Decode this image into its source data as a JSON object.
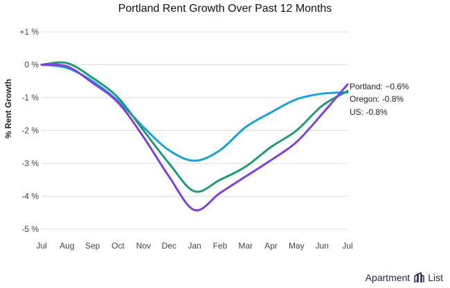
{
  "chart_data": {
    "type": "line",
    "title": "Portland Rent Growth Over Past 12 Months",
    "ylabel": "% Rent Growth",
    "xlabel": "",
    "categories": [
      "Jul",
      "Aug",
      "Sep",
      "Oct",
      "Nov",
      "Dec",
      "Jan",
      "Feb",
      "Mar",
      "Apr",
      "May",
      "Jun",
      "Jul"
    ],
    "ylim": [
      -5,
      1
    ],
    "yticks": [
      1,
      0,
      -1,
      -2,
      -3,
      -4,
      -5
    ],
    "ytick_labels": [
      "+1 %",
      "0 %",
      "-1 %",
      "-2 %",
      "-3 %",
      "-4 %",
      "-5 %"
    ],
    "grid": true,
    "series": [
      {
        "name": "US",
        "color": "#1a9fd8",
        "label": "US: -0.8%",
        "values": [
          0,
          -0.1,
          -0.5,
          -1.1,
          -1.9,
          -2.6,
          -2.92,
          -2.6,
          -1.9,
          -1.45,
          -1.05,
          -0.88,
          -0.84
        ]
      },
      {
        "name": "Oregon",
        "color": "#1a9b73",
        "label": "Oregon: -0.8%",
        "values": [
          0,
          0.05,
          -0.4,
          -1.0,
          -2.0,
          -3.0,
          -3.85,
          -3.5,
          -3.1,
          -2.5,
          -2.0,
          -1.25,
          -0.8
        ]
      },
      {
        "name": "Portland",
        "color": "#7e3fdc",
        "label": "Portland: −0.6%",
        "values": [
          0,
          -0.05,
          -0.55,
          -1.15,
          -2.2,
          -3.4,
          -4.42,
          -3.9,
          -3.4,
          -2.9,
          -2.35,
          -1.5,
          -0.6
        ]
      }
    ]
  },
  "brand": {
    "name": "Apartment List",
    "color": "#2a1f4a"
  }
}
